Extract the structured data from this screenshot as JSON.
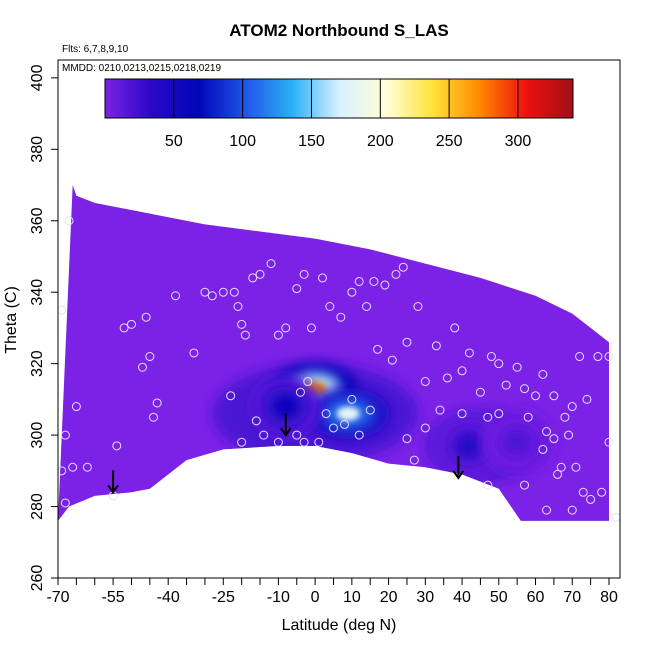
{
  "chart_data": {
    "type": "heatmap",
    "title": "ATOM2 Northbound S_LAS",
    "subtitle_lines": [
      "Flts: 6,7,8,9,10",
      "MMDD: 0210,0213,0215,0218,0219"
    ],
    "xlabel": "Latitude (deg N)",
    "ylabel": "Theta (C)",
    "xlim": [
      -70,
      83
    ],
    "ylim": [
      260,
      405
    ],
    "x_tick_labels": [
      "-70",
      "-55",
      "-40",
      "-25",
      "-10",
      "0",
      "10",
      "20",
      "30",
      "40",
      "50",
      "60",
      "70",
      "80"
    ],
    "x_tick_values": [
      -70,
      -55,
      -40,
      -25,
      -10,
      0,
      10,
      20,
      30,
      40,
      50,
      60,
      70,
      80
    ],
    "x_minor_ticks": [
      -65,
      -60,
      -50,
      -45,
      -35,
      -30,
      -20,
      -15,
      -5,
      5,
      15,
      25,
      35,
      45,
      55,
      65,
      75
    ],
    "y_tick_labels": [
      "260",
      "280",
      "300",
      "320",
      "340",
      "360",
      "380",
      "400"
    ],
    "y_tick_values": [
      260,
      280,
      300,
      320,
      340,
      360,
      380,
      400
    ],
    "colorbar": {
      "min": 0,
      "max": 340,
      "tick_labels": [
        "50",
        "100",
        "150",
        "200",
        "250",
        "300"
      ],
      "tick_values": [
        50,
        100,
        150,
        200,
        250,
        300
      ],
      "colors": [
        "#7b22e6",
        "#2a08c8",
        "#0006b8",
        "#1f55e8",
        "#2ab0f5",
        "#d8f0ff",
        "#ffffd8",
        "#ffe23a",
        "#ff8a00",
        "#ee1010",
        "#a01018"
      ]
    },
    "field_background_color": "#7b22e6",
    "enhanced_features": [
      {
        "center_lat": 0,
        "center_theta": 313,
        "peak_value": 270
      },
      {
        "center_lat": 9,
        "center_theta": 306,
        "peak_value": 180
      },
      {
        "center_lat": -8,
        "center_theta": 308,
        "peak_value": 60
      },
      {
        "center_lat": 42,
        "center_theta": 297,
        "peak_value": 40
      },
      {
        "center_lat": 55,
        "center_theta": 298,
        "peak_value": 20
      }
    ],
    "domain_top": [
      [
        -66,
        370
      ],
      [
        -65,
        367
      ],
      [
        -60,
        365
      ],
      [
        -55,
        364
      ],
      [
        -45,
        362
      ],
      [
        -30,
        359
      ],
      [
        -15,
        357
      ],
      [
        0,
        355
      ],
      [
        15,
        352
      ],
      [
        30,
        348
      ],
      [
        45,
        344
      ],
      [
        60,
        339
      ],
      [
        70,
        334
      ],
      [
        75,
        330
      ],
      [
        80,
        326
      ]
    ],
    "domain_bottom": [
      [
        -70,
        276
      ],
      [
        -67,
        280
      ],
      [
        -60,
        283
      ],
      [
        -50,
        284
      ],
      [
        -45,
        285
      ],
      [
        -35,
        293
      ],
      [
        -25,
        296
      ],
      [
        -10,
        297
      ],
      [
        0,
        297
      ],
      [
        10,
        295
      ],
      [
        20,
        292
      ],
      [
        30,
        291
      ],
      [
        40,
        289
      ],
      [
        50,
        285
      ],
      [
        56,
        276
      ],
      [
        80,
        276
      ]
    ],
    "arrows": [
      {
        "lat": -55,
        "theta": 284
      },
      {
        "lat": -8,
        "theta": 300
      },
      {
        "lat": 39,
        "theta": 288
      }
    ],
    "sample_points": [
      [
        -67,
        360
      ],
      [
        -69,
        335
      ],
      [
        -68,
        300
      ],
      [
        -69,
        290
      ],
      [
        -68,
        281
      ],
      [
        -66,
        291
      ],
      [
        -62,
        291
      ],
      [
        -65,
        308
      ],
      [
        -54,
        297
      ],
      [
        -52,
        330
      ],
      [
        -50,
        331
      ],
      [
        -46,
        333
      ],
      [
        -45,
        322
      ],
      [
        -47,
        319
      ],
      [
        -43,
        309
      ],
      [
        -44,
        305
      ],
      [
        -38,
        339
      ],
      [
        -33,
        323
      ],
      [
        -30,
        340
      ],
      [
        -28,
        339
      ],
      [
        -25,
        340
      ],
      [
        -22,
        340
      ],
      [
        -21,
        336
      ],
      [
        -20,
        331
      ],
      [
        -19,
        328
      ],
      [
        -17,
        344
      ],
      [
        -15,
        345
      ],
      [
        -12,
        348
      ],
      [
        -10,
        328
      ],
      [
        -8,
        330
      ],
      [
        -5,
        341
      ],
      [
        -3,
        345
      ],
      [
        -1,
        330
      ],
      [
        2,
        344
      ],
      [
        4,
        336
      ],
      [
        7,
        333
      ],
      [
        10,
        340
      ],
      [
        12,
        343
      ],
      [
        14,
        336
      ],
      [
        16,
        343
      ],
      [
        17,
        324
      ],
      [
        19,
        342
      ],
      [
        21,
        321
      ],
      [
        22,
        345
      ],
      [
        24,
        347
      ],
      [
        25,
        326
      ],
      [
        28,
        336
      ],
      [
        30,
        315
      ],
      [
        33,
        325
      ],
      [
        36,
        316
      ],
      [
        38,
        330
      ],
      [
        40,
        318
      ],
      [
        42,
        323
      ],
      [
        45,
        312
      ],
      [
        48,
        322
      ],
      [
        50,
        320
      ],
      [
        52,
        314
      ],
      [
        55,
        319
      ],
      [
        57,
        313
      ],
      [
        60,
        311
      ],
      [
        62,
        317
      ],
      [
        65,
        311
      ],
      [
        68,
        305
      ],
      [
        70,
        308
      ],
      [
        72,
        322
      ],
      [
        74,
        310
      ],
      [
        77,
        322
      ],
      [
        80,
        322
      ],
      [
        -10,
        298
      ],
      [
        -20,
        298
      ],
      [
        -23,
        311
      ],
      [
        -5,
        300
      ],
      [
        5,
        302
      ],
      [
        -2,
        315
      ],
      [
        10,
        310
      ],
      [
        15,
        307
      ],
      [
        -16,
        304
      ],
      [
        -14,
        300
      ],
      [
        27,
        293
      ],
      [
        34,
        307
      ],
      [
        30,
        302
      ],
      [
        25,
        299
      ],
      [
        40,
        306
      ],
      [
        47,
        286
      ],
      [
        47,
        305
      ],
      [
        50,
        306
      ],
      [
        57,
        286
      ],
      [
        58,
        305
      ],
      [
        62,
        296
      ],
      [
        63,
        301
      ],
      [
        66,
        289
      ],
      [
        67,
        291
      ],
      [
        70,
        279
      ],
      [
        71,
        291
      ],
      [
        73,
        284
      ],
      [
        75,
        282
      ],
      [
        78,
        284
      ],
      [
        80,
        298
      ],
      [
        82,
        277
      ],
      [
        65,
        299
      ],
      [
        69,
        300
      ],
      [
        63,
        279
      ],
      [
        -55,
        283
      ],
      [
        -3,
        298
      ],
      [
        1,
        298
      ],
      [
        -4,
        312
      ],
      [
        3,
        306
      ],
      [
        8,
        303
      ],
      [
        12,
        300
      ]
    ]
  }
}
